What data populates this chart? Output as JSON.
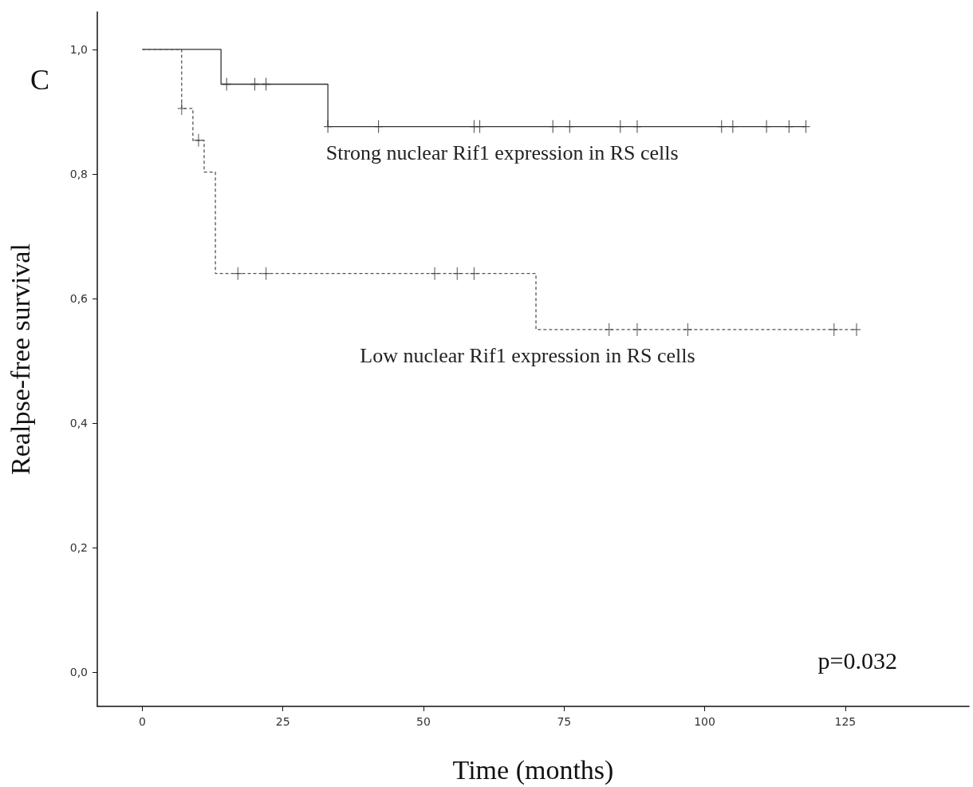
{
  "chart_data": {
    "type": "step",
    "xlabel": "Time (months)",
    "ylabel": "Realpse-free survival",
    "annotations": [
      "C",
      "p=0.032"
    ],
    "xlim": [
      -8,
      147
    ],
    "xticks": [
      0,
      25,
      50,
      75,
      100,
      125
    ],
    "ylim": [
      -0.055,
      1.06
    ],
    "yticks": [
      {
        "value": 0,
        "label": "0,0"
      },
      {
        "value": 0.2,
        "label": "0,2"
      },
      {
        "value": 0.4,
        "label": "0,4"
      },
      {
        "value": 0.6,
        "label": "0,6"
      },
      {
        "value": 0.8,
        "label": "0,8"
      },
      {
        "value": 1,
        "label": "1,0"
      }
    ],
    "grid": false,
    "series": [
      {
        "name": "Strong nuclear Rif1 expression in RS cells",
        "color": "#333333",
        "line_style": "solid",
        "marker": "none",
        "x": [
          0,
          14,
          33,
          118
        ],
        "values": [
          1,
          0.944,
          0.876,
          0.876
        ]
      },
      {
        "type": "scatter",
        "color": "#333333",
        "marker": "cross",
        "x": [
          15,
          20,
          22,
          33,
          42,
          59,
          60,
          73,
          76,
          85,
          88,
          103,
          105,
          111,
          115,
          118
        ],
        "values": [
          0.944,
          0.944,
          0.944,
          0.876,
          0.876,
          0.876,
          0.876,
          0.876,
          0.876,
          0.876,
          0.876,
          0.876,
          0.876,
          0.876,
          0.876,
          0.876
        ]
      },
      {
        "name": "Low nuclear Rif1 expression in RS cells",
        "color": "#555555",
        "line_style": "dashed",
        "marker": "none",
        "x": [
          0,
          7,
          9,
          11,
          13,
          70,
          127
        ],
        "values": [
          1,
          0.905,
          0.854,
          0.803,
          0.64,
          0.55,
          0.55
        ]
      },
      {
        "type": "scatter",
        "color": "#444444",
        "marker": "cross",
        "x": [
          7,
          10,
          17,
          22,
          52,
          56,
          59,
          83,
          88,
          97,
          123,
          127
        ],
        "values": [
          0.905,
          0.854,
          0.64,
          0.64,
          0.64,
          0.64,
          0.64,
          0.55,
          0.55,
          0.55,
          0.55,
          0.55
        ]
      }
    ]
  }
}
